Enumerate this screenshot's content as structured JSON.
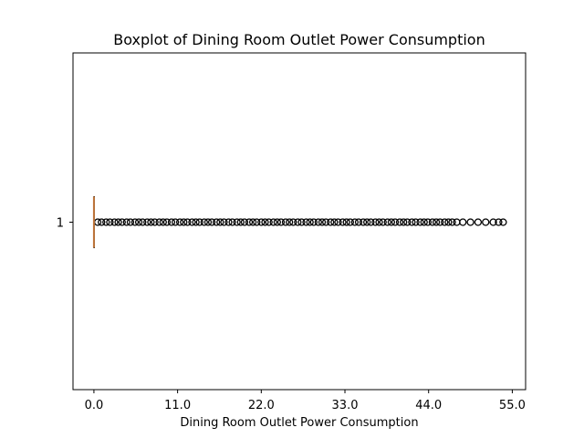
{
  "chart_data": {
    "type": "boxplot",
    "orientation": "horizontal",
    "title": "Boxplot of Dining Room Outlet Power Consumption",
    "xlabel": "Dining Room Outlet Power Consumption",
    "ylabel": "",
    "xlim": [
      -2.75,
      56.75
    ],
    "xticks": [
      0.0,
      11.0,
      22.0,
      33.0,
      44.0,
      55.0
    ],
    "xtick_labels": [
      "0.0",
      "11.0",
      "22.0",
      "33.0",
      "44.0",
      "55.0"
    ],
    "categories": [
      "1"
    ],
    "box": {
      "whislo": 0.0,
      "q1": 0.0,
      "med": 0.0,
      "q3": 0.0,
      "whishi": 0.0
    },
    "fliers": [
      0.5,
      1.0,
      1.6,
      2.1,
      2.7,
      3.2,
      3.7,
      4.3,
      4.8,
      5.4,
      5.9,
      6.4,
      7.0,
      7.5,
      8.0,
      8.6,
      9.1,
      9.6,
      10.2,
      10.7,
      11.3,
      11.8,
      12.3,
      12.9,
      13.4,
      13.9,
      14.5,
      15.0,
      15.5,
      16.1,
      16.6,
      17.1,
      17.7,
      18.2,
      18.8,
      19.3,
      19.8,
      20.4,
      20.9,
      21.4,
      22.0,
      22.5,
      23.0,
      23.6,
      24.1,
      24.6,
      25.2,
      25.7,
      26.2,
      26.8,
      27.3,
      27.9,
      28.4,
      28.9,
      29.5,
      30.0,
      30.5,
      31.1,
      31.6,
      32.1,
      32.7,
      33.2,
      33.7,
      34.3,
      34.8,
      35.4,
      35.9,
      36.4,
      37.0,
      37.5,
      38.0,
      38.6,
      39.1,
      39.6,
      40.2,
      40.7,
      41.2,
      41.8,
      42.3,
      42.9,
      43.4,
      43.9,
      44.5,
      45.0,
      45.5,
      46.1,
      46.6,
      47.1,
      47.7,
      48.5,
      49.5,
      50.5,
      51.5,
      52.5,
      53.2,
      53.8
    ],
    "grid": false,
    "legend": "none",
    "colors": {
      "median": "#c0763b",
      "flier_edge": "#000000",
      "box": "#000000"
    }
  }
}
